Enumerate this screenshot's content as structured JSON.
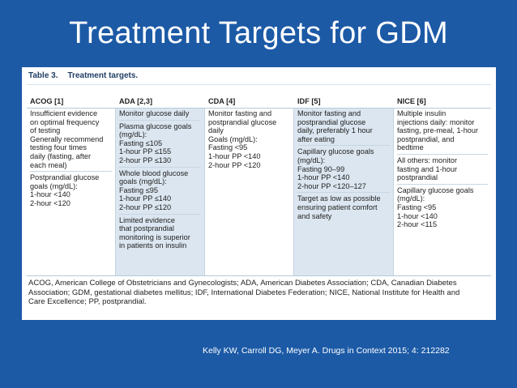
{
  "slide": {
    "title": "Treatment Targets for GDM",
    "citation": "Kelly KW, Carroll DG, Meyer A. Drugs in Context 2015; 4: 212282"
  },
  "table": {
    "label": "Table 3.",
    "title": "Treatment targets.",
    "headers": [
      "ACOG [1]",
      "ADA [2,3]",
      "CDA [4]",
      "IDF [5]",
      "NICE [6]"
    ],
    "columns": [
      [
        [
          "Insufficient evidence",
          "on optimal frequency",
          "of testing",
          "Generally recommend",
          "testing four times",
          "daily (fasting, after",
          "each meal)"
        ],
        [
          "Postprandial glucose",
          "goals (mg/dL):",
          "1-hour <140",
          "2-hour <120"
        ]
      ],
      [
        [
          "Monitor glucose daily"
        ],
        [
          "Plasma glucose goals",
          "(mg/dL):",
          "Fasting ≤105",
          "1-hour PP ≤155",
          "2-hour PP ≤130"
        ],
        [
          "Whole blood glucose",
          "goals (mg/dL):",
          "Fasting ≤95",
          "1-hour PP ≤140",
          "2-hour PP ≤120"
        ],
        [
          "Limited evidence",
          "that postprandial",
          "monitoring is superior",
          "in patients on insulin"
        ]
      ],
      [
        [
          "Monitor fasting and",
          "postprandial glucose",
          "daily",
          "Goals (mg/dL):",
          "Fasting <95",
          "1-hour PP <140",
          "2-hour PP <120"
        ]
      ],
      [
        [
          "Monitor fasting and",
          "postprandial glucose",
          "daily, preferably 1 hour",
          "after eating"
        ],
        [
          "Capillary glucose goals",
          "(mg/dL):",
          "Fasting 90–99",
          "1-hour PP <140",
          "2-hour PP <120–127"
        ],
        [
          "Target as low as possible",
          "ensuring patient comfort",
          "and safety"
        ]
      ],
      [
        [
          "Multiple insulin",
          "injections daily: monitor",
          "fasting, pre-meal, 1-hour",
          "postprandial, and",
          "bedtime"
        ],
        [
          "All others: monitor",
          "fasting and 1-hour",
          "postprandial"
        ],
        [
          "Capillary glucose goals",
          "(mg/dL):",
          "Fasting <95",
          "1-hour <140",
          "2-hour <115"
        ]
      ]
    ],
    "footnote_lines": [
      "ACOG, American College of Obstetricians and Gynecologists; ADA, American Diabetes Association; CDA, Canadian Diabetes",
      "Association; GDM, gestational diabetes mellitus; IDF, International Diabetes Federation; NICE, National Institute for Health and",
      "Care Excellence; PP, postprandial."
    ]
  }
}
